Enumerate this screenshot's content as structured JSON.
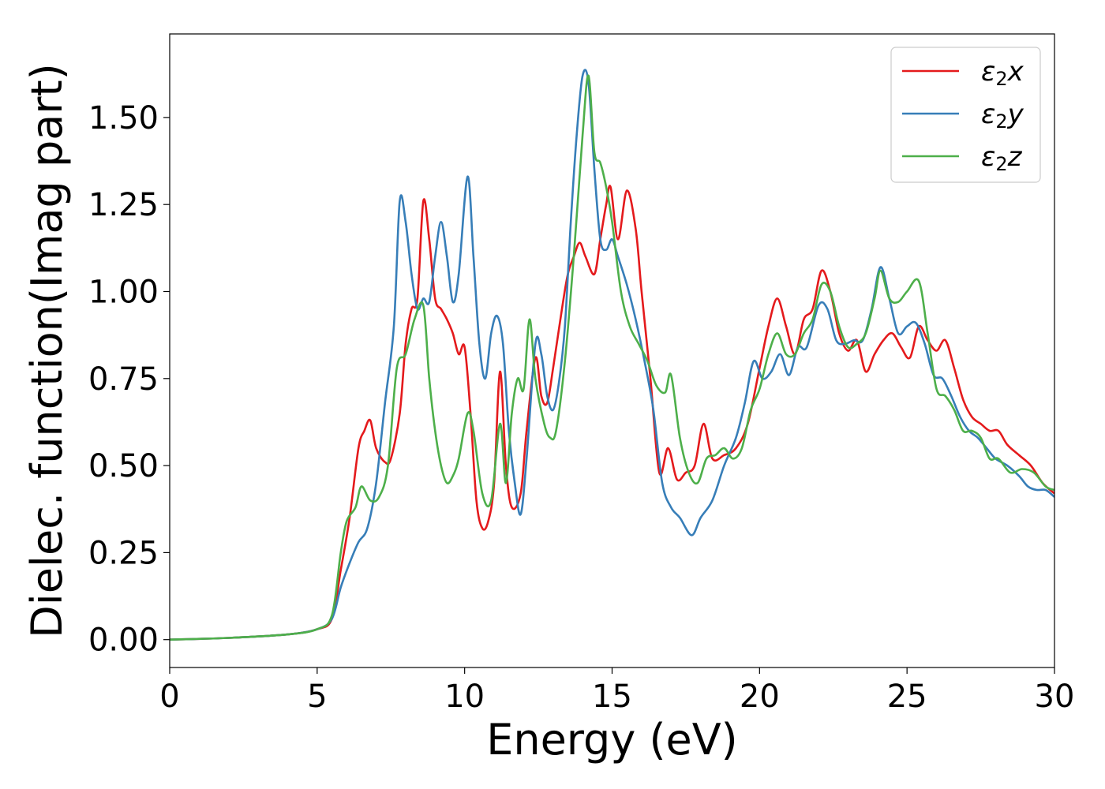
{
  "chart_data": {
    "type": "line",
    "title": "",
    "xlabel": "Energy (eV)",
    "ylabel": "Dielec. function(Imag part)",
    "xlim": [
      0,
      30
    ],
    "ylim": [
      -0.08,
      1.74
    ],
    "xticks": [
      0,
      5,
      10,
      15,
      20,
      25,
      30
    ],
    "xtick_labels": [
      "0",
      "5",
      "10",
      "15",
      "20",
      "25",
      "30"
    ],
    "yticks": [
      0,
      0.25,
      0.5,
      0.75,
      1.0,
      1.25,
      1.5
    ],
    "ytick_labels": [
      "0.00",
      "0.25",
      "0.50",
      "0.75",
      "1.00",
      "1.25",
      "1.50"
    ],
    "grid": false,
    "legend": "top-right",
    "series": [
      {
        "name": "ε2x",
        "legend_base": "ε",
        "legend_sub": "2",
        "legend_var": "x",
        "color": "#e41a1c",
        "points": [
          [
            0,
            0
          ],
          [
            2,
            0.005
          ],
          [
            4,
            0.015
          ],
          [
            5,
            0.03
          ],
          [
            5.5,
            0.06
          ],
          [
            5.8,
            0.2
          ],
          [
            6.1,
            0.35
          ],
          [
            6.4,
            0.55
          ],
          [
            6.6,
            0.6
          ],
          [
            6.8,
            0.63
          ],
          [
            7.0,
            0.55
          ],
          [
            7.3,
            0.51
          ],
          [
            7.5,
            0.52
          ],
          [
            7.8,
            0.65
          ],
          [
            8.0,
            0.85
          ],
          [
            8.2,
            0.95
          ],
          [
            8.4,
            0.98
          ],
          [
            8.6,
            1.26
          ],
          [
            8.8,
            1.15
          ],
          [
            9.0,
            0.98
          ],
          [
            9.2,
            0.95
          ],
          [
            9.4,
            0.92
          ],
          [
            9.6,
            0.88
          ],
          [
            9.8,
            0.82
          ],
          [
            10.0,
            0.84
          ],
          [
            10.2,
            0.65
          ],
          [
            10.4,
            0.4
          ],
          [
            10.6,
            0.32
          ],
          [
            10.8,
            0.34
          ],
          [
            11.0,
            0.45
          ],
          [
            11.2,
            0.77
          ],
          [
            11.4,
            0.5
          ],
          [
            11.6,
            0.38
          ],
          [
            11.9,
            0.42
          ],
          [
            12.1,
            0.6
          ],
          [
            12.4,
            0.81
          ],
          [
            12.6,
            0.7
          ],
          [
            12.8,
            0.68
          ],
          [
            13.0,
            0.78
          ],
          [
            13.3,
            0.95
          ],
          [
            13.5,
            1.05
          ],
          [
            13.7,
            1.1
          ],
          [
            13.9,
            1.14
          ],
          [
            14.1,
            1.1
          ],
          [
            14.4,
            1.05
          ],
          [
            14.6,
            1.15
          ],
          [
            14.8,
            1.25
          ],
          [
            14.95,
            1.3
          ],
          [
            15.2,
            1.15
          ],
          [
            15.5,
            1.29
          ],
          [
            15.8,
            1.18
          ],
          [
            16.0,
            1.0
          ],
          [
            16.3,
            0.75
          ],
          [
            16.6,
            0.48
          ],
          [
            16.9,
            0.55
          ],
          [
            17.2,
            0.46
          ],
          [
            17.5,
            0.48
          ],
          [
            17.8,
            0.5
          ],
          [
            18.1,
            0.62
          ],
          [
            18.4,
            0.52
          ],
          [
            18.8,
            0.53
          ],
          [
            19.2,
            0.55
          ],
          [
            19.6,
            0.62
          ],
          [
            20.0,
            0.78
          ],
          [
            20.3,
            0.9
          ],
          [
            20.6,
            0.98
          ],
          [
            20.9,
            0.9
          ],
          [
            21.2,
            0.82
          ],
          [
            21.5,
            0.92
          ],
          [
            21.8,
            0.95
          ],
          [
            22.1,
            1.06
          ],
          [
            22.4,
            1.0
          ],
          [
            22.7,
            0.88
          ],
          [
            23.0,
            0.83
          ],
          [
            23.3,
            0.86
          ],
          [
            23.6,
            0.77
          ],
          [
            23.9,
            0.82
          ],
          [
            24.2,
            0.86
          ],
          [
            24.5,
            0.88
          ],
          [
            24.8,
            0.84
          ],
          [
            25.1,
            0.81
          ],
          [
            25.4,
            0.9
          ],
          [
            25.7,
            0.86
          ],
          [
            26.0,
            0.83
          ],
          [
            26.3,
            0.86
          ],
          [
            26.6,
            0.78
          ],
          [
            26.9,
            0.69
          ],
          [
            27.2,
            0.64
          ],
          [
            27.5,
            0.62
          ],
          [
            27.8,
            0.6
          ],
          [
            28.1,
            0.6
          ],
          [
            28.4,
            0.56
          ],
          [
            28.8,
            0.53
          ],
          [
            29.2,
            0.5
          ],
          [
            29.6,
            0.45
          ],
          [
            30.0,
            0.42
          ]
        ]
      },
      {
        "name": "ε2y",
        "legend_base": "ε",
        "legend_sub": "2",
        "legend_var": "y",
        "color": "#377eb8",
        "points": [
          [
            0,
            0
          ],
          [
            2,
            0.005
          ],
          [
            4,
            0.015
          ],
          [
            5,
            0.03
          ],
          [
            5.5,
            0.06
          ],
          [
            5.8,
            0.15
          ],
          [
            6.1,
            0.22
          ],
          [
            6.4,
            0.28
          ],
          [
            6.7,
            0.32
          ],
          [
            7.0,
            0.45
          ],
          [
            7.3,
            0.68
          ],
          [
            7.6,
            0.9
          ],
          [
            7.8,
            1.26
          ],
          [
            8.0,
            1.2
          ],
          [
            8.2,
            1.05
          ],
          [
            8.4,
            0.95
          ],
          [
            8.6,
            0.98
          ],
          [
            8.8,
            0.97
          ],
          [
            9.0,
            1.1
          ],
          [
            9.2,
            1.2
          ],
          [
            9.4,
            1.1
          ],
          [
            9.6,
            0.97
          ],
          [
            9.8,
            1.05
          ],
          [
            10.1,
            1.33
          ],
          [
            10.3,
            1.1
          ],
          [
            10.5,
            0.85
          ],
          [
            10.7,
            0.75
          ],
          [
            10.9,
            0.88
          ],
          [
            11.1,
            0.93
          ],
          [
            11.3,
            0.85
          ],
          [
            11.5,
            0.6
          ],
          [
            11.7,
            0.45
          ],
          [
            11.9,
            0.36
          ],
          [
            12.1,
            0.52
          ],
          [
            12.4,
            0.85
          ],
          [
            12.6,
            0.82
          ],
          [
            12.8,
            0.7
          ],
          [
            13.0,
            0.66
          ],
          [
            13.2,
            0.74
          ],
          [
            13.4,
            0.9
          ],
          [
            13.6,
            1.2
          ],
          [
            13.8,
            1.45
          ],
          [
            14.0,
            1.62
          ],
          [
            14.2,
            1.6
          ],
          [
            14.4,
            1.35
          ],
          [
            14.6,
            1.15
          ],
          [
            14.8,
            1.12
          ],
          [
            15.0,
            1.15
          ],
          [
            15.2,
            1.1
          ],
          [
            15.5,
            1.02
          ],
          [
            15.8,
            0.92
          ],
          [
            16.1,
            0.8
          ],
          [
            16.4,
            0.66
          ],
          [
            16.7,
            0.45
          ],
          [
            17.0,
            0.38
          ],
          [
            17.3,
            0.35
          ],
          [
            17.7,
            0.3
          ],
          [
            18.0,
            0.35
          ],
          [
            18.4,
            0.4
          ],
          [
            18.8,
            0.5
          ],
          [
            19.2,
            0.58
          ],
          [
            19.5,
            0.68
          ],
          [
            19.8,
            0.8
          ],
          [
            20.1,
            0.75
          ],
          [
            20.4,
            0.77
          ],
          [
            20.7,
            0.82
          ],
          [
            21.0,
            0.76
          ],
          [
            21.3,
            0.84
          ],
          [
            21.6,
            0.84
          ],
          [
            22.0,
            0.96
          ],
          [
            22.3,
            0.95
          ],
          [
            22.6,
            0.86
          ],
          [
            22.9,
            0.85
          ],
          [
            23.2,
            0.86
          ],
          [
            23.5,
            0.86
          ],
          [
            23.8,
            0.95
          ],
          [
            24.1,
            1.07
          ],
          [
            24.4,
            0.98
          ],
          [
            24.7,
            0.88
          ],
          [
            25.0,
            0.9
          ],
          [
            25.3,
            0.91
          ],
          [
            25.6,
            0.85
          ],
          [
            25.9,
            0.76
          ],
          [
            26.2,
            0.75
          ],
          [
            26.5,
            0.7
          ],
          [
            26.8,
            0.64
          ],
          [
            27.1,
            0.6
          ],
          [
            27.4,
            0.58
          ],
          [
            27.7,
            0.55
          ],
          [
            28.0,
            0.52
          ],
          [
            28.4,
            0.5
          ],
          [
            28.8,
            0.47
          ],
          [
            29.1,
            0.44
          ],
          [
            29.4,
            0.43
          ],
          [
            29.7,
            0.43
          ],
          [
            30.0,
            0.41
          ]
        ]
      },
      {
        "name": "ε2z",
        "legend_base": "ε",
        "legend_sub": "2",
        "legend_var": "z",
        "color": "#4daf4a",
        "points": [
          [
            0,
            0
          ],
          [
            2,
            0.005
          ],
          [
            4,
            0.015
          ],
          [
            5,
            0.03
          ],
          [
            5.5,
            0.07
          ],
          [
            5.8,
            0.25
          ],
          [
            6.0,
            0.34
          ],
          [
            6.3,
            0.38
          ],
          [
            6.5,
            0.44
          ],
          [
            6.8,
            0.4
          ],
          [
            7.1,
            0.41
          ],
          [
            7.4,
            0.5
          ],
          [
            7.7,
            0.78
          ],
          [
            8.0,
            0.82
          ],
          [
            8.3,
            0.92
          ],
          [
            8.6,
            0.96
          ],
          [
            8.8,
            0.75
          ],
          [
            9.0,
            0.6
          ],
          [
            9.2,
            0.5
          ],
          [
            9.4,
            0.45
          ],
          [
            9.6,
            0.47
          ],
          [
            9.8,
            0.52
          ],
          [
            10.1,
            0.65
          ],
          [
            10.3,
            0.6
          ],
          [
            10.6,
            0.42
          ],
          [
            10.9,
            0.4
          ],
          [
            11.2,
            0.62
          ],
          [
            11.4,
            0.45
          ],
          [
            11.6,
            0.65
          ],
          [
            11.8,
            0.75
          ],
          [
            12.0,
            0.72
          ],
          [
            12.2,
            0.92
          ],
          [
            12.4,
            0.75
          ],
          [
            12.7,
            0.62
          ],
          [
            12.9,
            0.58
          ],
          [
            13.1,
            0.6
          ],
          [
            13.4,
            0.8
          ],
          [
            13.7,
            1.1
          ],
          [
            14.0,
            1.45
          ],
          [
            14.2,
            1.62
          ],
          [
            14.4,
            1.4
          ],
          [
            14.6,
            1.37
          ],
          [
            14.8,
            1.3
          ],
          [
            15.0,
            1.2
          ],
          [
            15.3,
            1.0
          ],
          [
            15.6,
            0.9
          ],
          [
            15.9,
            0.85
          ],
          [
            16.2,
            0.8
          ],
          [
            16.5,
            0.73
          ],
          [
            16.8,
            0.71
          ],
          [
            17.0,
            0.76
          ],
          [
            17.3,
            0.58
          ],
          [
            17.6,
            0.48
          ],
          [
            17.9,
            0.45
          ],
          [
            18.2,
            0.52
          ],
          [
            18.5,
            0.53
          ],
          [
            18.8,
            0.55
          ],
          [
            19.1,
            0.52
          ],
          [
            19.4,
            0.55
          ],
          [
            19.7,
            0.66
          ],
          [
            20.0,
            0.72
          ],
          [
            20.3,
            0.82
          ],
          [
            20.6,
            0.88
          ],
          [
            20.9,
            0.82
          ],
          [
            21.2,
            0.82
          ],
          [
            21.5,
            0.88
          ],
          [
            21.8,
            0.92
          ],
          [
            22.1,
            1.02
          ],
          [
            22.4,
            1.0
          ],
          [
            22.7,
            0.9
          ],
          [
            23.0,
            0.84
          ],
          [
            23.3,
            0.85
          ],
          [
            23.6,
            0.88
          ],
          [
            23.9,
            0.98
          ],
          [
            24.1,
            1.06
          ],
          [
            24.4,
            0.98
          ],
          [
            24.7,
            0.97
          ],
          [
            25.0,
            1.0
          ],
          [
            25.4,
            1.03
          ],
          [
            25.7,
            0.88
          ],
          [
            26.0,
            0.72
          ],
          [
            26.3,
            0.7
          ],
          [
            26.6,
            0.66
          ],
          [
            26.9,
            0.6
          ],
          [
            27.2,
            0.6
          ],
          [
            27.5,
            0.58
          ],
          [
            27.8,
            0.52
          ],
          [
            28.1,
            0.52
          ],
          [
            28.5,
            0.48
          ],
          [
            28.9,
            0.49
          ],
          [
            29.3,
            0.48
          ],
          [
            29.7,
            0.44
          ],
          [
            30.0,
            0.43
          ]
        ]
      }
    ]
  }
}
